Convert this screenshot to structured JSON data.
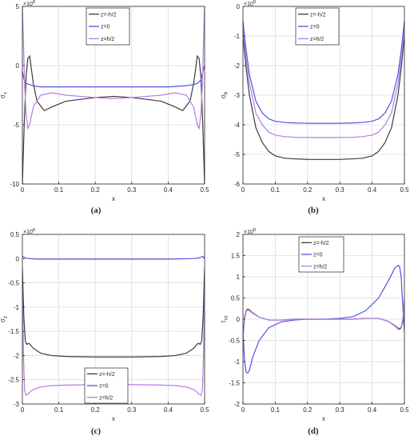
{
  "colors": {
    "z_minus": "#3c3c3c",
    "z_zero": "#5a4fe0",
    "z_plus": "#b67ce8",
    "grid": "#dcdcdc",
    "axis": "#262626"
  },
  "chart_data": [
    {
      "id": "a",
      "type": "line",
      "caption": "(a)",
      "xlabel": "x",
      "ylabel": "σ_x",
      "multiplier": "×10^8",
      "xlim": [
        0,
        0.5
      ],
      "ylim": [
        -10,
        5
      ],
      "xticks": [
        0,
        0.1,
        0.2,
        0.3,
        0.4,
        0.5
      ],
      "xtick_labels": [
        "0",
        "0.1",
        "0.2",
        "0.3",
        "0.4",
        "0.5"
      ],
      "yticks": [
        -10,
        -5,
        0,
        5
      ],
      "ytick_labels": [
        "-10",
        "-5",
        "0",
        "5"
      ],
      "grid": true,
      "legend": "top-center",
      "series": [
        {
          "name": "z=-h/2",
          "color_key": "z_minus",
          "x": [
            0,
            0.005,
            0.01,
            0.015,
            0.02,
            0.03,
            0.04,
            0.06,
            0.08,
            0.12,
            0.2,
            0.25,
            0.3,
            0.38,
            0.42,
            0.44,
            0.46,
            0.47,
            0.48,
            0.485,
            0.49,
            0.495,
            0.5
          ],
          "y": [
            -10,
            -5,
            -1,
            0.6,
            0.8,
            -1.5,
            -3,
            -3.8,
            -3.5,
            -3.0,
            -2.7,
            -2.6,
            -2.7,
            -3.0,
            -3.5,
            -3.8,
            -3,
            -1.5,
            0.8,
            0.6,
            -1,
            -5,
            -10
          ]
        },
        {
          "name": "z=0",
          "color_key": "z_zero",
          "x": [
            0,
            0.005,
            0.01,
            0.02,
            0.03,
            0.05,
            0.1,
            0.2,
            0.3,
            0.4,
            0.45,
            0.47,
            0.48,
            0.49,
            0.495,
            0.5
          ],
          "y": [
            -0.5,
            -1.2,
            -1.5,
            -1.6,
            -1.7,
            -1.8,
            -1.8,
            -1.8,
            -1.8,
            -1.8,
            -1.7,
            -1.6,
            -1.5,
            -1.2,
            -0.5,
            0
          ]
        },
        {
          "name": "z=h/2",
          "color_key": "z_plus",
          "x": [
            0,
            0.003,
            0.006,
            0.01,
            0.015,
            0.02,
            0.03,
            0.05,
            0.08,
            0.12,
            0.2,
            0.25,
            0.3,
            0.38,
            0.42,
            0.45,
            0.47,
            0.48,
            0.485,
            0.49,
            0.494,
            0.497,
            0.5
          ],
          "y": [
            5,
            2,
            -1.5,
            -4,
            -5.3,
            -5,
            -3.5,
            -2.5,
            -2.3,
            -2.5,
            -2.7,
            -2.8,
            -2.7,
            -2.5,
            -2.3,
            -2.5,
            -3.5,
            -5,
            -5.3,
            -4,
            -1.5,
            2,
            5
          ]
        }
      ]
    },
    {
      "id": "b",
      "type": "line",
      "caption": "(b)",
      "xlabel": "x",
      "ylabel": "σ_θ",
      "multiplier": "×10^8",
      "xlim": [
        0,
        0.5
      ],
      "ylim": [
        -6,
        0
      ],
      "xticks": [
        0,
        0.1,
        0.2,
        0.3,
        0.4,
        0.5
      ],
      "xtick_labels": [
        "0",
        "0.1",
        "0.2",
        "0.3",
        "0.4",
        "0.5"
      ],
      "yticks": [
        -6,
        -5,
        -4,
        -3,
        -2,
        -1,
        0
      ],
      "ytick_labels": [
        "-6",
        "-5",
        "-4",
        "-3",
        "-2",
        "-1",
        "0"
      ],
      "grid": true,
      "legend": "top-center",
      "series": [
        {
          "name": "z=-h/2",
          "color_key": "z_minus",
          "x": [
            0,
            0.01,
            0.02,
            0.04,
            0.06,
            0.08,
            0.1,
            0.13,
            0.16,
            0.2,
            0.25,
            0.3,
            0.34,
            0.37,
            0.4,
            0.42,
            0.44,
            0.46,
            0.48,
            0.49,
            0.5
          ],
          "y": [
            -1,
            -2.1,
            -3,
            -4.1,
            -4.6,
            -4.9,
            -5.05,
            -5.13,
            -5.15,
            -5.17,
            -5.17,
            -5.17,
            -5.15,
            -5.13,
            -5.05,
            -4.9,
            -4.6,
            -4.1,
            -3,
            -2.1,
            -1
          ]
        },
        {
          "name": "z=0",
          "color_key": "z_zero",
          "x": [
            0,
            0.01,
            0.02,
            0.04,
            0.06,
            0.08,
            0.1,
            0.13,
            0.16,
            0.2,
            0.25,
            0.3,
            0.34,
            0.37,
            0.4,
            0.42,
            0.44,
            0.46,
            0.48,
            0.49,
            0.5
          ],
          "y": [
            -0.5,
            -1.5,
            -2.3,
            -3.2,
            -3.6,
            -3.8,
            -3.88,
            -3.92,
            -3.94,
            -3.95,
            -3.95,
            -3.95,
            -3.94,
            -3.92,
            -3.88,
            -3.8,
            -3.6,
            -3.2,
            -2.3,
            -1.5,
            -0.5
          ]
        },
        {
          "name": "z=h/2",
          "color_key": "z_plus",
          "x": [
            0,
            0.01,
            0.02,
            0.04,
            0.06,
            0.08,
            0.1,
            0.13,
            0.16,
            0.2,
            0.25,
            0.3,
            0.34,
            0.37,
            0.4,
            0.42,
            0.44,
            0.46,
            0.48,
            0.49,
            0.5
          ],
          "y": [
            -0.8,
            -1.8,
            -2.6,
            -3.6,
            -4.0,
            -4.25,
            -4.35,
            -4.4,
            -4.42,
            -4.43,
            -4.43,
            -4.43,
            -4.42,
            -4.4,
            -4.35,
            -4.25,
            -4.0,
            -3.6,
            -2.6,
            -1.8,
            -0.8
          ]
        }
      ]
    },
    {
      "id": "c",
      "type": "line",
      "caption": "(c)",
      "xlabel": "x",
      "ylabel": "σ_z",
      "multiplier": "×10^8",
      "xlim": [
        0,
        0.5
      ],
      "ylim": [
        -3,
        0.5
      ],
      "xticks": [
        0,
        0.1,
        0.2,
        0.3,
        0.4,
        0.5
      ],
      "xtick_labels": [
        "0",
        "0.1",
        "0.2",
        "0.3",
        "0.4",
        "0.5"
      ],
      "yticks": [
        -3,
        -2.5,
        -2,
        -1.5,
        -1,
        -0.5,
        0,
        0.5
      ],
      "ytick_labels": [
        "-3",
        "-2.5",
        "-2",
        "-1.5",
        "-1",
        "-0.5",
        "0",
        "0.5"
      ],
      "grid": true,
      "legend": "bottom-center",
      "series": [
        {
          "name": "z=-h/2",
          "color_key": "z_minus",
          "x": [
            0,
            0.004,
            0.008,
            0.012,
            0.016,
            0.02,
            0.03,
            0.05,
            0.08,
            0.12,
            0.2,
            0.25,
            0.3,
            0.38,
            0.42,
            0.45,
            0.47,
            0.48,
            0.484,
            0.488,
            0.492,
            0.496,
            0.5
          ],
          "y": [
            -0.2,
            -1.2,
            -1.7,
            -1.77,
            -1.75,
            -1.76,
            -1.85,
            -1.95,
            -2.0,
            -2.02,
            -2.03,
            -2.03,
            -2.03,
            -2.02,
            -2.0,
            -1.95,
            -1.85,
            -1.76,
            -1.75,
            -1.77,
            -1.7,
            -1.2,
            -0.2
          ]
        },
        {
          "name": "z=0",
          "color_key": "z_zero",
          "x": [
            0,
            0.005,
            0.01,
            0.02,
            0.04,
            0.1,
            0.2,
            0.3,
            0.4,
            0.46,
            0.48,
            0.49,
            0.495,
            0.5
          ],
          "y": [
            0.05,
            0.03,
            0.01,
            0,
            -0.01,
            -0.01,
            -0.01,
            -0.01,
            -0.01,
            0,
            0.01,
            0.03,
            0.05,
            0
          ]
        },
        {
          "name": "z=h/2",
          "color_key": "z_plus",
          "x": [
            0,
            0.003,
            0.006,
            0.01,
            0.015,
            0.02,
            0.03,
            0.05,
            0.08,
            0.12,
            0.2,
            0.25,
            0.3,
            0.38,
            0.42,
            0.45,
            0.47,
            0.48,
            0.485,
            0.49,
            0.494,
            0.497,
            0.5
          ],
          "y": [
            -0.6,
            -2.0,
            -2.7,
            -2.82,
            -2.8,
            -2.76,
            -2.7,
            -2.65,
            -2.62,
            -2.61,
            -2.6,
            -2.6,
            -2.6,
            -2.61,
            -2.62,
            -2.65,
            -2.7,
            -2.76,
            -2.8,
            -2.82,
            -2.7,
            -2.0,
            -0.6
          ]
        }
      ]
    },
    {
      "id": "d",
      "type": "line",
      "caption": "(d)",
      "xlabel": "x",
      "ylabel": "τ_xz",
      "multiplier": "×10^8",
      "xlim": [
        0,
        0.5
      ],
      "ylim": [
        -2,
        2
      ],
      "xticks": [
        0,
        0.1,
        0.2,
        0.3,
        0.4,
        0.5
      ],
      "xtick_labels": [
        "0",
        "0.1",
        "0.2",
        "0.3",
        "0.4",
        "0.5"
      ],
      "yticks": [
        -2,
        -1.5,
        -1,
        -0.5,
        0,
        0.5,
        1,
        1.5,
        2
      ],
      "ytick_labels": [
        "-2",
        "-1.5",
        "-1",
        "-0.5",
        "0",
        "0.5",
        "1",
        "1.5",
        "2"
      ],
      "grid": true,
      "legend": "top-right",
      "series": [
        {
          "name": "z=-h/2",
          "color_key": "z_minus",
          "x": [
            0,
            0.005,
            0.01,
            0.015,
            0.02,
            0.03,
            0.05,
            0.08,
            0.12,
            0.16,
            0.2,
            0.25,
            0.3,
            0.34,
            0.38,
            0.42,
            0.45,
            0.47,
            0.48,
            0.485,
            0.49,
            0.495,
            0.5
          ],
          "y": [
            -0.4,
            0.05,
            0.2,
            0.24,
            0.22,
            0.15,
            0.05,
            -0.02,
            -0.02,
            0,
            0,
            0,
            0,
            0,
            0.02,
            0.02,
            -0.05,
            -0.15,
            -0.22,
            -0.24,
            -0.2,
            -0.05,
            0.4
          ]
        },
        {
          "name": "z=0",
          "color_key": "z_zero",
          "x": [
            0,
            0.005,
            0.01,
            0.015,
            0.02,
            0.03,
            0.05,
            0.08,
            0.12,
            0.16,
            0.2,
            0.25,
            0.3,
            0.34,
            0.38,
            0.42,
            0.45,
            0.47,
            0.48,
            0.485,
            0.49,
            0.495,
            0.5
          ],
          "y": [
            -0.3,
            -1.0,
            -1.25,
            -1.27,
            -1.2,
            -0.9,
            -0.5,
            -0.2,
            -0.06,
            -0.02,
            0,
            0,
            0.02,
            0.06,
            0.2,
            0.5,
            0.9,
            1.2,
            1.27,
            1.25,
            1.0,
            0.3,
            -0.3
          ]
        },
        {
          "name": "z=h/2",
          "color_key": "z_plus",
          "x": [
            0,
            0.005,
            0.01,
            0.015,
            0.02,
            0.03,
            0.05,
            0.08,
            0.12,
            0.16,
            0.2,
            0.25,
            0.3,
            0.34,
            0.38,
            0.42,
            0.45,
            0.47,
            0.48,
            0.485,
            0.49,
            0.495,
            0.5
          ],
          "y": [
            -0.5,
            0.0,
            0.18,
            0.22,
            0.2,
            0.14,
            0.05,
            -0.02,
            -0.02,
            0,
            0,
            0,
            0,
            0,
            0.02,
            0.02,
            -0.05,
            -0.14,
            -0.2,
            -0.22,
            -0.18,
            0.0,
            0.5
          ]
        }
      ]
    }
  ]
}
